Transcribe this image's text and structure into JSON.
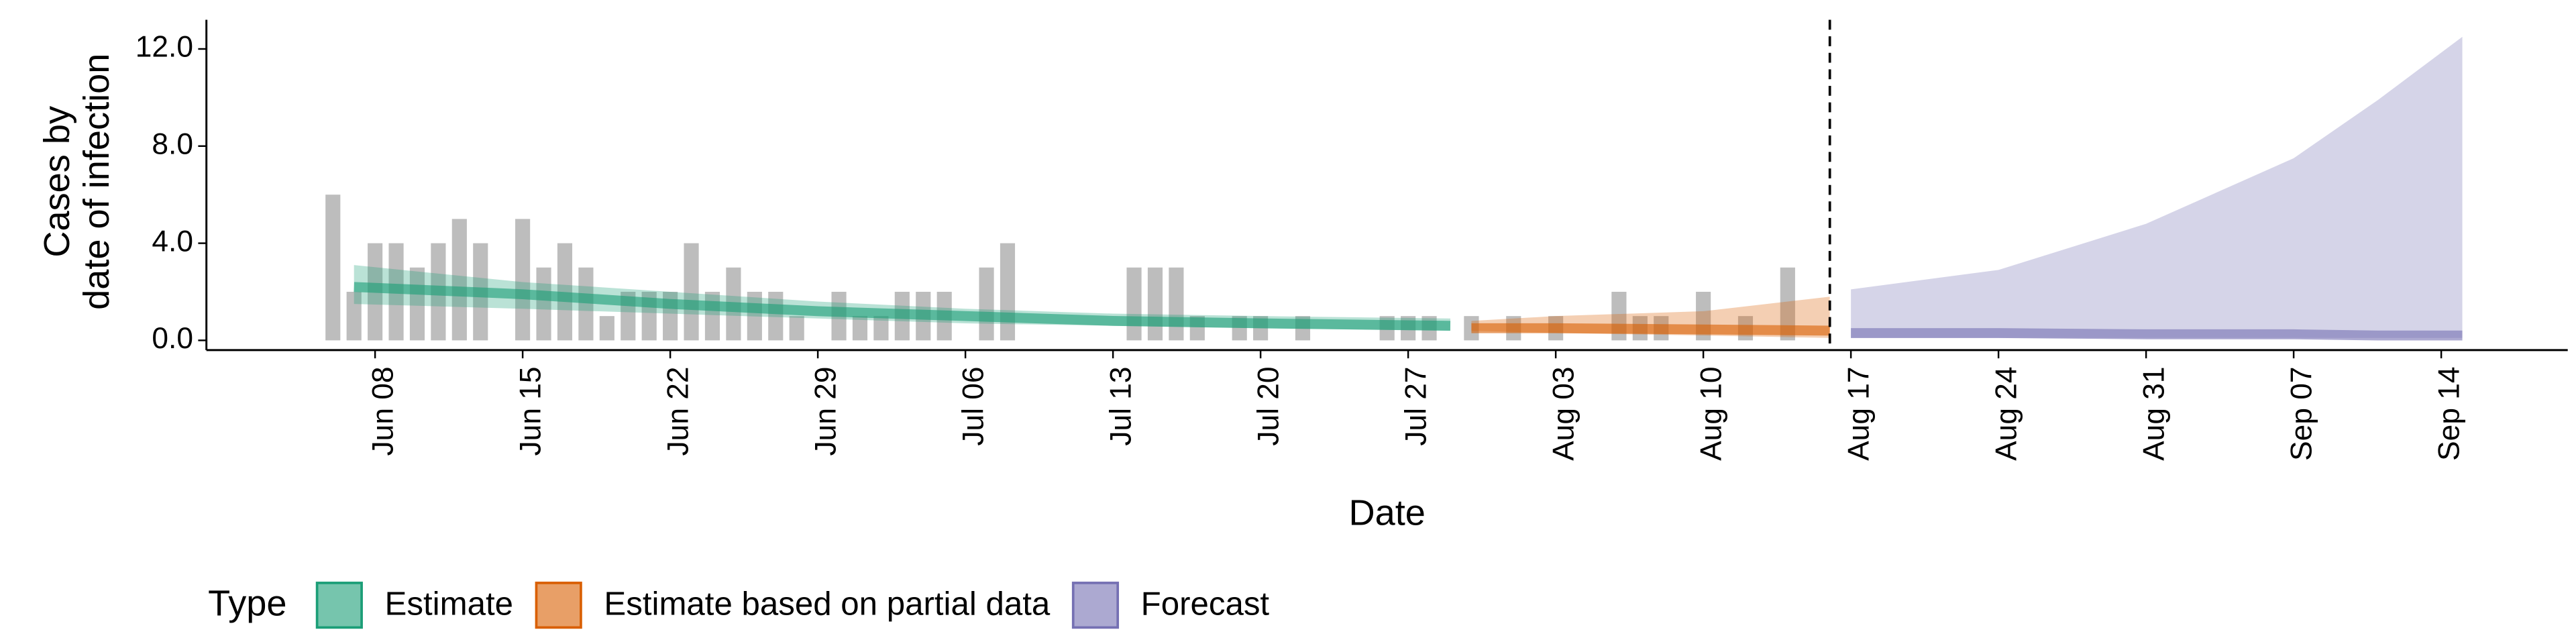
{
  "chart_data": {
    "type": "line",
    "xlabel": "Date",
    "ylabel": [
      "Cases by",
      "date of infection"
    ],
    "legend_title": "Type",
    "legend_position": "bottom",
    "xlim": [
      "May 31",
      "Sep 20"
    ],
    "xticks": [
      "Jun 08",
      "Jun 15",
      "Jun 22",
      "Jun 29",
      "Jul 06",
      "Jul 13",
      "Jul 20",
      "Jul 27",
      "Aug 03",
      "Aug 10",
      "Aug 17",
      "Aug 24",
      "Aug 31",
      "Sep 07",
      "Sep 14"
    ],
    "ylim": [
      -0.4,
      13.2
    ],
    "yticks": [
      {
        "value": 0,
        "label": "0.0"
      },
      {
        "value": 4,
        "label": "4.0"
      },
      {
        "value": 8,
        "label": "8.0"
      },
      {
        "value": 12,
        "label": "12.0"
      }
    ],
    "vline_x": "Aug 16",
    "bars": {
      "color": "#bdbdbd",
      "x": [
        "Jun 06",
        "Jun 07",
        "Jun 08",
        "Jun 09",
        "Jun 10",
        "Jun 11",
        "Jun 12",
        "Jun 13",
        "Jun 15",
        "Jun 16",
        "Jun 17",
        "Jun 18",
        "Jun 19",
        "Jun 20",
        "Jun 21",
        "Jun 22",
        "Jun 23",
        "Jun 24",
        "Jun 25",
        "Jun 26",
        "Jun 27",
        "Jun 28",
        "Jun 30",
        "Jul 01",
        "Jul 02",
        "Jul 03",
        "Jul 04",
        "Jul 05",
        "Jul 07",
        "Jul 08",
        "Jul 14",
        "Jul 15",
        "Jul 16",
        "Jul 17",
        "Jul 19",
        "Jul 20",
        "Jul 22",
        "Jul 26",
        "Jul 27",
        "Jul 28",
        "Jul 30",
        "Aug 01",
        "Aug 03",
        "Aug 06",
        "Aug 07",
        "Aug 08",
        "Aug 10",
        "Aug 12",
        "Aug 14"
      ],
      "values": [
        6,
        2,
        4,
        4,
        3,
        4,
        5,
        4,
        5,
        3,
        4,
        3,
        1,
        2,
        2,
        2,
        4,
        2,
        3,
        2,
        2,
        1,
        2,
        1,
        1,
        2,
        2,
        2,
        3,
        4,
        3,
        3,
        3,
        1,
        1,
        1,
        1,
        1,
        1,
        1,
        1,
        1,
        1,
        2,
        1,
        1,
        2,
        1,
        3
      ]
    },
    "series": [
      {
        "name": "Estimate",
        "color": "#1b9e77",
        "x": [
          "Jun 07",
          "Jun 15",
          "Jun 22",
          "Jun 29",
          "Jul 06",
          "Jul 13",
          "Jul 20",
          "Jul 29"
        ],
        "values": [
          2.2,
          1.9,
          1.5,
          1.2,
          1.0,
          0.8,
          0.7,
          0.6
        ],
        "lower": [
          1.5,
          1.3,
          1.1,
          0.9,
          0.7,
          0.6,
          0.5,
          0.4
        ],
        "upper": [
          3.1,
          2.4,
          2.0,
          1.6,
          1.3,
          1.1,
          1.0,
          0.9
        ]
      },
      {
        "name": "Estimate based on partial data",
        "color": "#d95f02",
        "x": [
          "Jul 30",
          "Aug 03",
          "Aug 10",
          "Aug 16"
        ],
        "values": [
          0.5,
          0.5,
          0.45,
          0.4
        ],
        "lower": [
          0.4,
          0.3,
          0.2,
          0.1
        ],
        "upper": [
          0.8,
          1.0,
          1.2,
          1.8
        ]
      },
      {
        "name": "Forecast",
        "color": "#7570b3",
        "x": [
          "Aug 17",
          "Aug 24",
          "Aug 31",
          "Sep 07",
          "Sep 11",
          "Sep 15"
        ],
        "values": [
          0.3,
          0.3,
          0.25,
          0.25,
          0.2,
          0.2
        ],
        "lower": [
          0.1,
          0.1,
          0.1,
          0.1,
          0.1,
          0.1
        ],
        "upper": [
          2.1,
          2.9,
          4.8,
          7.5,
          9.9,
          12.5
        ]
      }
    ]
  }
}
